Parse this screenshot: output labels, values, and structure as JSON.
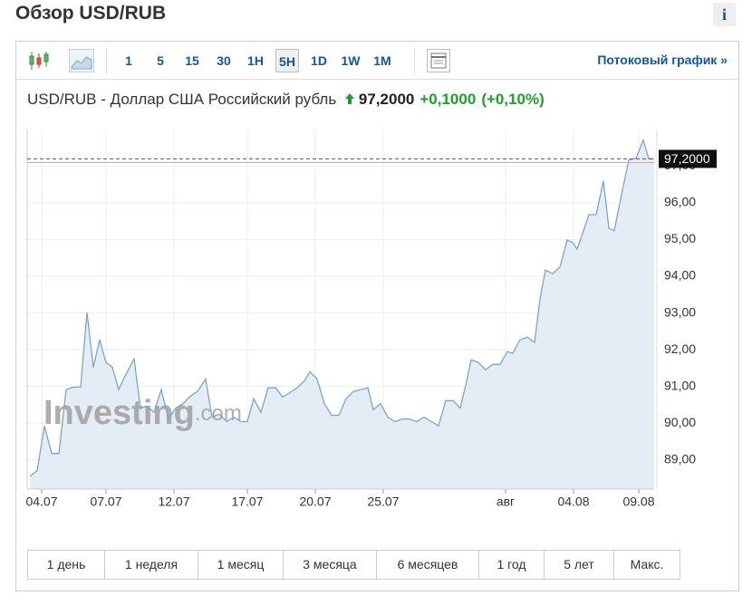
{
  "header": {
    "title": "Обзор USD/RUB",
    "info": "i"
  },
  "toolbar": {
    "intervals": [
      "1",
      "5",
      "15",
      "30",
      "1H",
      "5H",
      "1D",
      "1W",
      "1M"
    ],
    "active": "5H",
    "stream_link": "Потоковый график »"
  },
  "instrument": {
    "name": "USD/RUB - Доллар США Российский рубль",
    "price": "97,2000",
    "change": "+0,1000",
    "change_pct": "(+0,10%)"
  },
  "watermark": {
    "brand": "Investing",
    "suffix": ".com"
  },
  "chart_data": {
    "type": "area",
    "color": "#7aa6cc",
    "fill": "#e4edf6",
    "x": [
      3,
      11,
      19,
      27,
      35,
      43,
      51,
      59,
      66,
      73,
      80,
      87,
      94,
      101,
      108,
      118,
      125,
      132,
      140,
      148,
      156,
      164,
      172,
      180,
      188,
      197,
      204,
      212,
      220,
      228,
      236,
      243,
      250,
      258,
      266,
      274,
      282,
      290,
      298,
      306,
      312,
      320,
      328,
      336,
      344,
      352,
      360,
      368,
      376,
      382,
      390,
      398,
      406,
      414,
      422,
      430,
      438,
      446,
      454,
      462,
      470,
      478,
      484,
      490,
      498,
      506,
      514,
      522,
      530,
      536,
      544,
      552,
      560,
      566,
      572,
      580,
      588,
      596,
      602,
      607,
      614,
      620,
      628,
      636,
      642,
      648,
      656,
      664,
      672,
      680,
      686,
      692
    ],
    "values": [
      88.55,
      88.7,
      89.92,
      89.17,
      89.17,
      90.91,
      90.98,
      90.98,
      93.01,
      91.52,
      92.27,
      91.65,
      91.52,
      90.91,
      91.28,
      91.75,
      90.41,
      90.46,
      90.29,
      90.91,
      90.11,
      90.41,
      90.53,
      90.73,
      90.86,
      91.2,
      90.16,
      90.24,
      90.04,
      90.16,
      90.04,
      90.04,
      90.66,
      90.29,
      90.96,
      90.96,
      90.71,
      90.83,
      90.96,
      91.15,
      91.4,
      91.2,
      90.53,
      90.21,
      90.21,
      90.66,
      90.86,
      90.91,
      90.96,
      90.36,
      90.53,
      90.16,
      90.04,
      90.11,
      90.11,
      90.04,
      90.16,
      90.04,
      89.92,
      90.61,
      90.61,
      90.41,
      91.03,
      91.72,
      91.65,
      91.45,
      91.6,
      91.6,
      91.95,
      91.9,
      92.27,
      92.34,
      92.2,
      93.38,
      94.17,
      94.07,
      94.25,
      94.99,
      94.92,
      94.74,
      95.24,
      95.68,
      95.68,
      96.6,
      95.31,
      95.24,
      96.23,
      97.17,
      97.22,
      97.71,
      97.2,
      97.2
    ],
    "xlim": [
      0,
      692
    ],
    "xticks": [
      {
        "value": 16,
        "label": "04.07"
      },
      {
        "value": 87,
        "label": "07.07"
      },
      {
        "value": 162,
        "label": "12.07"
      },
      {
        "value": 243,
        "label": "17.07"
      },
      {
        "value": 318,
        "label": "20.07"
      },
      {
        "value": 393,
        "label": "25.07"
      },
      {
        "value": 528,
        "label": "авг"
      },
      {
        "value": 603,
        "label": "04.08"
      },
      {
        "value": 675,
        "label": "09.08"
      }
    ],
    "ylim": [
      88.2,
      98.0
    ],
    "yticks": [
      {
        "value": 89,
        "label": "89,00"
      },
      {
        "value": 90,
        "label": "90,00"
      },
      {
        "value": 91,
        "label": "91,00"
      },
      {
        "value": 92,
        "label": "92,00"
      },
      {
        "value": 93,
        "label": "93,00"
      },
      {
        "value": 94,
        "label": "94,00"
      },
      {
        "value": 95,
        "label": "95,00"
      },
      {
        "value": 96,
        "label": "96,00"
      },
      {
        "value": 97,
        "label": "97,00"
      }
    ],
    "last": {
      "value": 97.2,
      "label": "97,2000"
    },
    "prev_close": 97.1,
    "grid": true
  },
  "ranges": [
    "1 день",
    "1 неделя",
    "1 месяц",
    "3 месяца",
    "6 месяцев",
    "1 год",
    "5 лет",
    "Макс."
  ]
}
